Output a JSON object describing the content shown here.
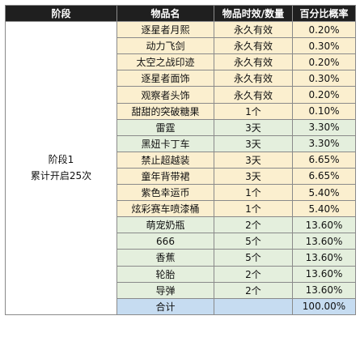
{
  "headers": [
    "阶段",
    "物品名",
    "物品时效/数量",
    "百分比概率"
  ],
  "stage": {
    "line1": "阶段1",
    "line2": "累计开启25次"
  },
  "rows": [
    {
      "name": "逐星者月熙",
      "duration": "永久有效",
      "prob": "0.20%"
    },
    {
      "name": "动力飞剑",
      "duration": "永久有效",
      "prob": "0.30%"
    },
    {
      "name": "太空之战印迹",
      "duration": "永久有效",
      "prob": "0.20%"
    },
    {
      "name": "逐星者面饰",
      "duration": "永久有效",
      "prob": "0.30%"
    },
    {
      "name": "观察者头饰",
      "duration": "永久有效",
      "prob": "0.20%"
    },
    {
      "name": "甜甜的突破糖果",
      "duration": "1个",
      "prob": "0.10%"
    },
    {
      "name": "雷霆",
      "duration": "3天",
      "prob": "3.30%"
    },
    {
      "name": "黑妞卡丁车",
      "duration": "3天",
      "prob": "3.30%"
    },
    {
      "name": "禁止超越装",
      "duration": "3天",
      "prob": "6.65%"
    },
    {
      "name": "童年背带裙",
      "duration": "3天",
      "prob": "6.65%"
    },
    {
      "name": "紫色幸运币",
      "duration": "1个",
      "prob": "5.40%"
    },
    {
      "name": "炫彩赛车喷漆桶",
      "duration": "1个",
      "prob": "5.40%"
    },
    {
      "name": "萌宠奶瓶",
      "duration": "2个",
      "prob": "13.60%"
    },
    {
      "name": "666",
      "duration": "5个",
      "prob": "13.60%"
    },
    {
      "name": "香蕉",
      "duration": "5个",
      "prob": "13.60%"
    },
    {
      "name": "轮胎",
      "duration": "2个",
      "prob": "13.60%"
    },
    {
      "name": "导弹",
      "duration": "2个",
      "prob": "13.60%"
    }
  ],
  "total": {
    "label": "合计",
    "duration": "",
    "prob": "100.00%"
  },
  "colors": {
    "header": "#1f1f1f",
    "yellow": "#fbefcf",
    "green": "#e4efdd",
    "blue": "#c6dcf1"
  }
}
